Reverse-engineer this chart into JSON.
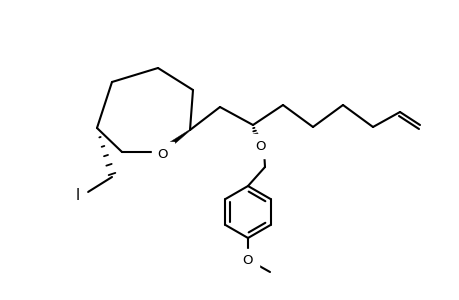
{
  "bg_color": "#ffffff",
  "line_color": "#000000",
  "line_width": 1.5,
  "label_I": "I",
  "label_O1": "O",
  "label_O2": "O",
  "label_OMe": "O",
  "figsize": [
    4.6,
    3.0
  ],
  "dpi": 100
}
